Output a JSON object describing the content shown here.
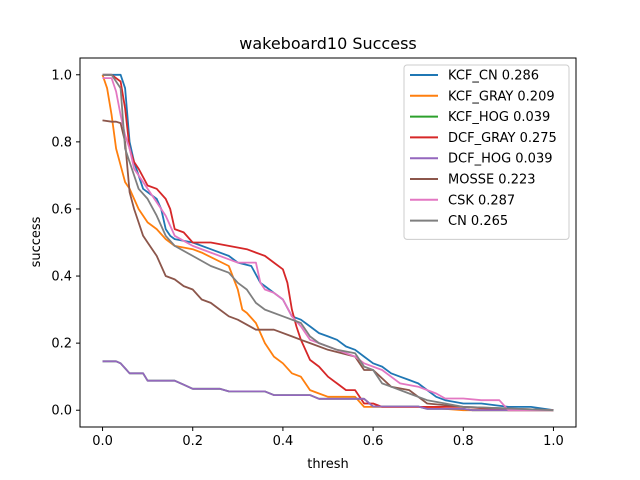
{
  "chart_data": {
    "type": "line",
    "title": "wakeboard10 Success",
    "xlabel": "thresh",
    "ylabel": "success",
    "xlim": [
      -0.05,
      1.05
    ],
    "ylim": [
      -0.05,
      1.05
    ],
    "xticks": [
      "0.0",
      "0.2",
      "0.4",
      "0.6",
      "0.8",
      "1.0"
    ],
    "yticks": [
      "0.0",
      "0.2",
      "0.4",
      "0.6",
      "0.8",
      "1.0"
    ],
    "grid": false,
    "legend_position": "top-right",
    "series": [
      {
        "name": "KCF_CN 0.286",
        "color": "#1f77b4",
        "x": [
          0.0,
          0.02,
          0.04,
          0.05,
          0.06,
          0.07,
          0.08,
          0.09,
          0.1,
          0.12,
          0.13,
          0.14,
          0.15,
          0.16,
          0.2,
          0.24,
          0.28,
          0.3,
          0.33,
          0.35,
          0.36,
          0.38,
          0.4,
          0.42,
          0.44,
          0.46,
          0.48,
          0.5,
          0.52,
          0.54,
          0.56,
          0.58,
          0.6,
          0.62,
          0.64,
          0.66,
          0.68,
          0.7,
          0.72,
          0.74,
          0.76,
          0.8,
          0.84,
          0.9,
          0.95,
          1.0
        ],
        "y": [
          1.0,
          1.0,
          1.0,
          0.96,
          0.8,
          0.74,
          0.7,
          0.66,
          0.65,
          0.63,
          0.6,
          0.54,
          0.52,
          0.51,
          0.5,
          0.48,
          0.46,
          0.44,
          0.43,
          0.38,
          0.37,
          0.35,
          0.33,
          0.28,
          0.27,
          0.25,
          0.23,
          0.22,
          0.21,
          0.19,
          0.18,
          0.16,
          0.14,
          0.13,
          0.11,
          0.1,
          0.09,
          0.08,
          0.06,
          0.04,
          0.03,
          0.02,
          0.02,
          0.01,
          0.01,
          0.0
        ]
      },
      {
        "name": "KCF_GRAY 0.209",
        "color": "#ff7f0e",
        "x": [
          0.0,
          0.01,
          0.02,
          0.03,
          0.04,
          0.05,
          0.06,
          0.07,
          0.08,
          0.1,
          0.12,
          0.14,
          0.16,
          0.2,
          0.22,
          0.28,
          0.3,
          0.31,
          0.32,
          0.34,
          0.36,
          0.38,
          0.4,
          0.42,
          0.44,
          0.46,
          0.48,
          0.5,
          0.56,
          0.58,
          0.6,
          0.7,
          0.8,
          0.9,
          1.0
        ],
        "y": [
          1.0,
          0.96,
          0.88,
          0.78,
          0.73,
          0.68,
          0.66,
          0.63,
          0.6,
          0.56,
          0.54,
          0.51,
          0.49,
          0.48,
          0.47,
          0.43,
          0.36,
          0.3,
          0.29,
          0.26,
          0.2,
          0.16,
          0.14,
          0.11,
          0.1,
          0.06,
          0.05,
          0.04,
          0.04,
          0.01,
          0.01,
          0.01,
          0.0,
          0.0,
          0.0
        ]
      },
      {
        "name": "KCF_HOG 0.039",
        "color": "#2ca02c",
        "x": [
          0.0,
          0.03,
          0.04,
          0.06,
          0.09,
          0.1,
          0.16,
          0.18,
          0.2,
          0.26,
          0.28,
          0.36,
          0.38,
          0.46,
          0.48,
          0.58,
          0.6,
          0.7,
          0.72,
          0.8,
          0.82,
          1.0
        ],
        "y": [
          0.146,
          0.146,
          0.14,
          0.11,
          0.11,
          0.088,
          0.088,
          0.076,
          0.064,
          0.064,
          0.056,
          0.056,
          0.045,
          0.045,
          0.034,
          0.034,
          0.011,
          0.011,
          0.004,
          0.004,
          0.0,
          0.0
        ]
      },
      {
        "name": "DCF_GRAY 0.275",
        "color": "#d62728",
        "x": [
          0.0,
          0.02,
          0.04,
          0.05,
          0.06,
          0.07,
          0.08,
          0.1,
          0.12,
          0.14,
          0.15,
          0.16,
          0.18,
          0.2,
          0.24,
          0.28,
          0.32,
          0.34,
          0.36,
          0.38,
          0.4,
          0.41,
          0.42,
          0.43,
          0.44,
          0.46,
          0.48,
          0.5,
          0.52,
          0.54,
          0.56,
          0.58,
          0.6,
          0.62,
          0.7,
          0.8,
          0.9,
          1.0
        ],
        "y": [
          1.0,
          1.0,
          0.98,
          0.9,
          0.78,
          0.74,
          0.72,
          0.67,
          0.66,
          0.63,
          0.6,
          0.54,
          0.53,
          0.5,
          0.5,
          0.49,
          0.48,
          0.47,
          0.46,
          0.44,
          0.42,
          0.38,
          0.3,
          0.25,
          0.21,
          0.15,
          0.13,
          0.1,
          0.08,
          0.06,
          0.06,
          0.02,
          0.02,
          0.01,
          0.01,
          0.01,
          0.0,
          0.0
        ]
      },
      {
        "name": "DCF_HOG 0.039",
        "color": "#9467bd",
        "x": [
          0.0,
          0.03,
          0.04,
          0.06,
          0.09,
          0.1,
          0.16,
          0.18,
          0.2,
          0.26,
          0.28,
          0.36,
          0.38,
          0.46,
          0.48,
          0.58,
          0.6,
          0.7,
          0.72,
          0.8,
          0.82,
          1.0
        ],
        "y": [
          0.146,
          0.146,
          0.14,
          0.11,
          0.11,
          0.088,
          0.088,
          0.076,
          0.064,
          0.064,
          0.056,
          0.056,
          0.045,
          0.045,
          0.034,
          0.034,
          0.011,
          0.011,
          0.004,
          0.004,
          0.0,
          0.0
        ]
      },
      {
        "name": "MOSSE 0.223",
        "color": "#8c564b",
        "x": [
          0.0,
          0.02,
          0.03,
          0.04,
          0.05,
          0.06,
          0.07,
          0.08,
          0.09,
          0.1,
          0.12,
          0.14,
          0.16,
          0.18,
          0.2,
          0.22,
          0.24,
          0.26,
          0.28,
          0.3,
          0.34,
          0.38,
          0.42,
          0.44,
          0.46,
          0.5,
          0.56,
          0.58,
          0.6,
          0.64,
          0.68,
          0.7,
          0.72,
          0.8,
          1.0
        ],
        "y": [
          0.864,
          0.86,
          0.86,
          0.856,
          0.8,
          0.65,
          0.6,
          0.56,
          0.52,
          0.5,
          0.46,
          0.4,
          0.39,
          0.37,
          0.36,
          0.33,
          0.32,
          0.3,
          0.28,
          0.27,
          0.24,
          0.24,
          0.22,
          0.21,
          0.2,
          0.18,
          0.16,
          0.12,
          0.12,
          0.07,
          0.06,
          0.04,
          0.02,
          0.01,
          0.0
        ]
      },
      {
        "name": "CSK 0.287",
        "color": "#e377c2",
        "x": [
          0.0,
          0.02,
          0.03,
          0.04,
          0.05,
          0.06,
          0.07,
          0.08,
          0.1,
          0.12,
          0.14,
          0.16,
          0.2,
          0.24,
          0.28,
          0.3,
          0.34,
          0.35,
          0.36,
          0.38,
          0.4,
          0.42,
          0.44,
          0.46,
          0.48,
          0.5,
          0.52,
          0.56,
          0.58,
          0.62,
          0.64,
          0.66,
          0.7,
          0.74,
          0.76,
          0.8,
          0.84,
          0.88,
          0.9,
          1.0
        ],
        "y": [
          0.99,
          0.99,
          0.95,
          0.88,
          0.82,
          0.78,
          0.72,
          0.7,
          0.66,
          0.62,
          0.58,
          0.52,
          0.49,
          0.47,
          0.45,
          0.44,
          0.44,
          0.38,
          0.36,
          0.35,
          0.33,
          0.28,
          0.25,
          0.21,
          0.2,
          0.19,
          0.18,
          0.16,
          0.14,
          0.12,
          0.1,
          0.08,
          0.07,
          0.05,
          0.035,
          0.035,
          0.03,
          0.03,
          0.0,
          0.0
        ]
      },
      {
        "name": "CN 0.265",
        "color": "#7f7f7f",
        "x": [
          0.0,
          0.02,
          0.04,
          0.05,
          0.06,
          0.07,
          0.08,
          0.1,
          0.12,
          0.14,
          0.16,
          0.2,
          0.24,
          0.28,
          0.3,
          0.32,
          0.34,
          0.36,
          0.4,
          0.44,
          0.46,
          0.48,
          0.52,
          0.56,
          0.58,
          0.6,
          0.62,
          0.64,
          0.68,
          0.72,
          0.76,
          0.8,
          1.0
        ],
        "y": [
          1.0,
          1.0,
          0.96,
          0.78,
          0.74,
          0.7,
          0.66,
          0.63,
          0.58,
          0.52,
          0.49,
          0.46,
          0.43,
          0.41,
          0.38,
          0.36,
          0.32,
          0.3,
          0.28,
          0.26,
          0.22,
          0.2,
          0.18,
          0.17,
          0.13,
          0.12,
          0.08,
          0.07,
          0.05,
          0.03,
          0.02,
          0.01,
          0.0
        ]
      }
    ]
  }
}
